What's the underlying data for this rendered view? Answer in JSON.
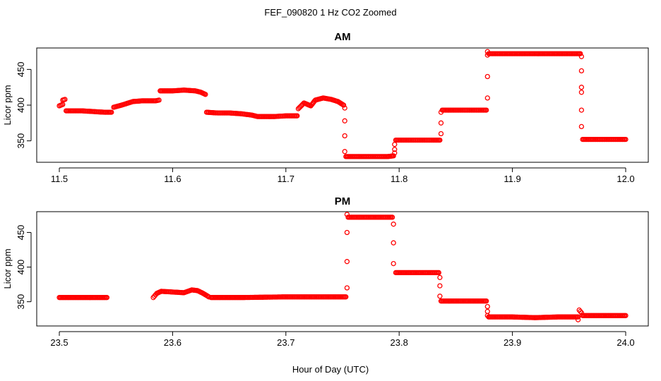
{
  "figure": {
    "title": "FEF_090820  1 Hz CO2 Zoomed",
    "xlabel": "Hour of Day (UTC)"
  },
  "colors": {
    "marker": "#ff0000",
    "axis": "#000000"
  },
  "chart_data": [
    {
      "type": "scatter",
      "title": "AM",
      "ylabel": "Licor ppm",
      "xlabel": "",
      "xlim": [
        11.5,
        12.0
      ],
      "ylim": [
        320,
        480
      ],
      "xticks": [
        "11.5",
        "11.6",
        "11.7",
        "11.8",
        "11.9",
        "12.0"
      ],
      "yticks": [
        "350",
        "400",
        "450"
      ],
      "marker": "open-circle",
      "series": [
        {
          "segments": [
            {
              "x": [
                11.5,
                11.503
              ],
              "y": [
                399,
                401
              ]
            },
            {
              "x": [
                11.503,
                11.505
              ],
              "y": [
                407,
                408
              ]
            },
            {
              "x": [
                11.506,
                11.52,
                11.53,
                11.54,
                11.546
              ],
              "y": [
                392,
                392,
                391,
                390,
                390
              ]
            },
            {
              "x": [
                11.548,
                11.555,
                11.565,
                11.573,
                11.585,
                11.588
              ],
              "y": [
                397,
                400,
                405,
                406,
                406,
                407
              ]
            },
            {
              "x": [
                11.589,
                11.6,
                11.61,
                11.62,
                11.625,
                11.629
              ],
              "y": [
                420,
                420,
                421,
                420,
                418,
                415
              ]
            },
            {
              "x": [
                11.63,
                11.64,
                11.65,
                11.66,
                11.67,
                11.675
              ],
              "y": [
                390,
                389,
                389,
                388,
                386,
                384
              ]
            },
            {
              "x": [
                11.676,
                11.69,
                11.7,
                11.71
              ],
              "y": [
                384,
                384,
                385,
                385
              ]
            },
            {
              "x": [
                11.711,
                11.716,
                11.722,
                11.726,
                11.733,
                11.74,
                11.746,
                11.751
              ],
              "y": [
                395,
                403,
                399,
                407,
                410,
                408,
                405,
                400
              ]
            },
            {
              "x": [
                11.753,
                11.76,
                11.77,
                11.78,
                11.79,
                11.795
              ],
              "y": [
                328,
                328,
                328,
                328,
                328,
                329
              ]
            },
            {
              "x": [
                11.797,
                11.81,
                11.82,
                11.83,
                11.836
              ],
              "y": [
                351,
                351,
                351,
                351,
                351
              ]
            },
            {
              "x": [
                11.838,
                11.85,
                11.86,
                11.87,
                11.877
              ],
              "y": [
                393,
                393,
                393,
                393,
                393
              ]
            },
            {
              "x": [
                11.879,
                11.9,
                11.92,
                11.94,
                11.96
              ],
              "y": [
                472,
                472,
                472,
                472,
                472
              ]
            },
            {
              "x": [
                11.962,
                11.97,
                11.98,
                11.99,
                12.0
              ],
              "y": [
                352,
                352,
                352,
                352,
                352
              ]
            }
          ],
          "transitions": [
            {
              "x": 11.752,
              "y": [
                396,
                378,
                357,
                335
              ]
            },
            {
              "x": 11.796,
              "y": [
                333,
                338,
                345
              ]
            },
            {
              "x": 11.837,
              "y": [
                360,
                375,
                390
              ]
            },
            {
              "x": 11.878,
              "y": [
                410,
                440,
                470,
                475
              ]
            },
            {
              "x": 11.961,
              "y": [
                468,
                448,
                425,
                418,
                393,
                370
              ]
            }
          ]
        }
      ]
    },
    {
      "type": "scatter",
      "title": "PM",
      "ylabel": "Licor ppm",
      "xlabel": "Hour of Day (UTC)",
      "xlim": [
        23.5,
        24.0
      ],
      "ylim": [
        315,
        480
      ],
      "xticks": [
        "23.5",
        "23.6",
        "23.7",
        "23.8",
        "23.9",
        "24.0"
      ],
      "yticks": [
        "350",
        "400",
        "450"
      ],
      "marker": "open-circle",
      "series": [
        {
          "segments": [
            {
              "x": [
                23.5,
                23.52,
                23.542
              ],
              "y": [
                356,
                356,
                356
              ]
            },
            {
              "x": [
                23.583,
                23.586,
                23.59,
                23.6,
                23.61,
                23.617,
                23.622,
                23.627,
                23.632
              ],
              "y": [
                356,
                362,
                365,
                364,
                363,
                367,
                366,
                362,
                357
              ]
            },
            {
              "x": [
                23.634,
                23.66,
                23.7,
                23.73,
                23.753
              ],
              "y": [
                356,
                356,
                357,
                357,
                357
              ]
            },
            {
              "x": [
                23.755,
                23.77,
                23.785,
                23.794
              ],
              "y": [
                472,
                472,
                472,
                472
              ]
            },
            {
              "x": [
                23.797,
                23.81,
                23.825,
                23.835
              ],
              "y": [
                392,
                392,
                392,
                392
              ]
            },
            {
              "x": [
                23.837,
                23.85,
                23.865,
                23.877
              ],
              "y": [
                351,
                351,
                351,
                351
              ]
            },
            {
              "x": [
                23.879,
                23.9,
                23.92,
                23.94,
                23.958
              ],
              "y": [
                328,
                328,
                327,
                328,
                328
              ]
            },
            {
              "x": [
                23.959,
                23.961
              ],
              "y": [
                338,
                334
              ]
            },
            {
              "x": [
                23.962,
                23.975,
                23.99,
                24.0
              ],
              "y": [
                330,
                330,
                330,
                330
              ]
            }
          ],
          "transitions": [
            {
              "x": 23.754,
              "y": [
                370,
                408,
                450,
                476
              ]
            },
            {
              "x": 23.795,
              "y": [
                462,
                435,
                405
              ]
            },
            {
              "x": 23.836,
              "y": [
                385,
                373,
                358
              ]
            },
            {
              "x": 23.878,
              "y": [
                343,
                336,
                330
              ]
            },
            {
              "x": 23.958,
              "y": [
                324
              ]
            }
          ]
        }
      ]
    }
  ]
}
